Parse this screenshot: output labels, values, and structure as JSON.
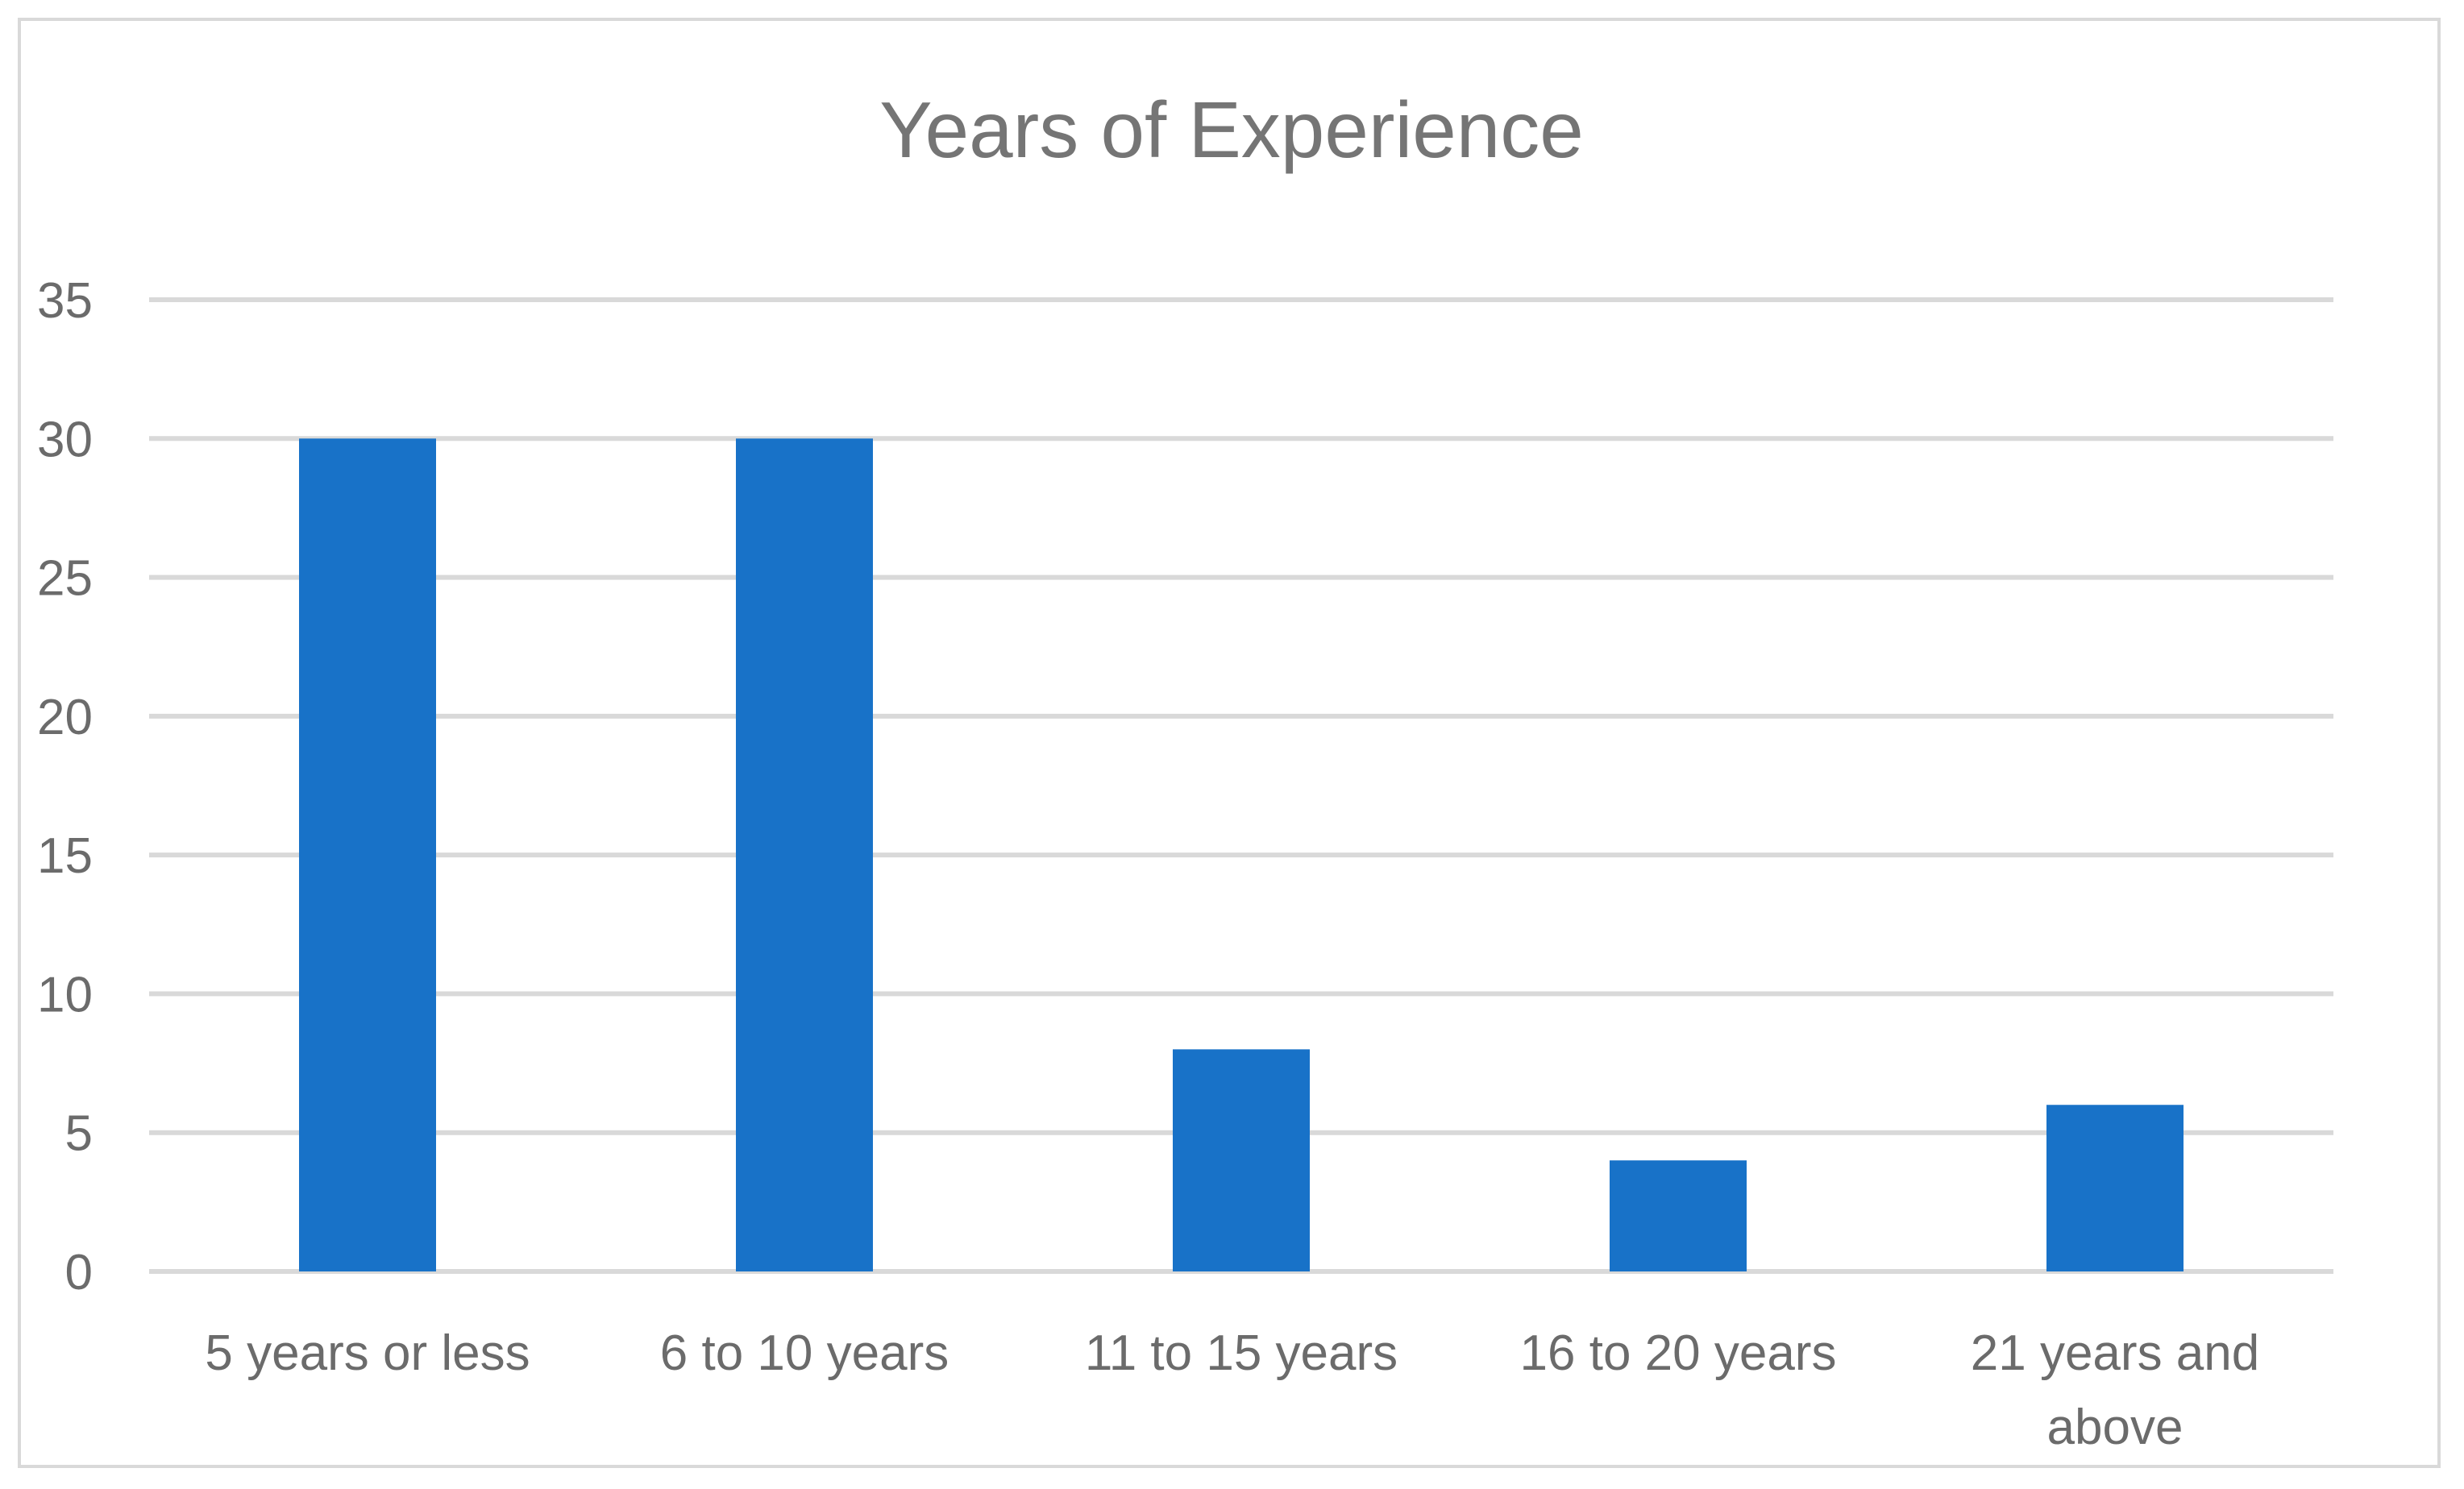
{
  "chart_data": {
    "type": "bar",
    "title": "Years of Experience",
    "categories": [
      "5 years or less",
      "6 to 10 years",
      "11 to 15 years",
      "16 to 20 years",
      "21 years and above"
    ],
    "category_label_lines": [
      [
        "5 years or less"
      ],
      [
        "6 to 10 years"
      ],
      [
        "11 to 15 years"
      ],
      [
        "16 to 20 years"
      ],
      [
        "21 years and",
        "above"
      ]
    ],
    "series": [
      {
        "values": [
          30,
          30,
          8,
          4,
          6
        ]
      }
    ],
    "ylim": [
      0,
      35
    ],
    "yticks": [
      0,
      5,
      10,
      15,
      20,
      25,
      30,
      35
    ],
    "xlabel": "",
    "ylabel": "",
    "grid": true,
    "legend": "none",
    "bar_color": "#1872C8"
  }
}
